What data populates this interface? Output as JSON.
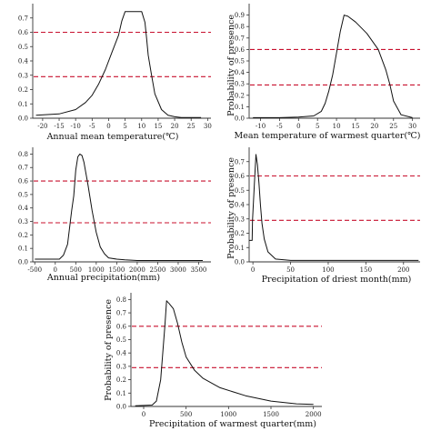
{
  "thresholds": {
    "values": [
      0.6,
      0.29
    ],
    "color": "#c8102e"
  },
  "line_color": "#111111",
  "chart_data": [
    {
      "type": "line",
      "xlabel": "Annual mean temperature(℃)",
      "ylabel": "",
      "xlim": [
        -23,
        31
      ],
      "ylim": [
        0,
        0.8
      ],
      "xticks": [
        -20,
        -15,
        -10,
        -5,
        0,
        5,
        10,
        15,
        20,
        25,
        30
      ],
      "yticks": [
        0.0,
        0.1,
        0.2,
        0.3,
        0.4,
        0.5,
        0.6,
        0.7
      ],
      "ytick_labels": [
        "0.0",
        "0.1",
        "0.2",
        "0.3",
        "0.4",
        "0.5",
        "0.6",
        "0.7"
      ],
      "x": [
        -22,
        -15,
        -10,
        -7,
        -5,
        -3,
        -1,
        1,
        3,
        4,
        5,
        7,
        9,
        10,
        11,
        11.5,
        12,
        13,
        14,
        16,
        18,
        20,
        22,
        28
      ],
      "y": [
        0.02,
        0.03,
        0.06,
        0.11,
        0.16,
        0.24,
        0.34,
        0.46,
        0.58,
        0.68,
        0.745,
        0.745,
        0.745,
        0.745,
        0.67,
        0.56,
        0.44,
        0.3,
        0.17,
        0.06,
        0.02,
        0.01,
        0.005,
        0.005
      ]
    },
    {
      "type": "line",
      "xlabel": "Mean temperature of warmest quarter(℃)",
      "ylabel": "Probability of presence",
      "xlim": [
        -13,
        32
      ],
      "ylim": [
        0,
        1.0
      ],
      "xticks": [
        -10,
        -5,
        0,
        5,
        10,
        15,
        20,
        25,
        30
      ],
      "yticks": [
        0.0,
        0.1,
        0.2,
        0.3,
        0.4,
        0.5,
        0.6,
        0.7,
        0.8,
        0.9
      ],
      "ytick_labels": [
        "0.0",
        "0.1",
        "0.2",
        "0.3",
        "0.4",
        "0.5",
        "0.6",
        "0.7",
        "0.8",
        "0.9"
      ],
      "x": [
        -12,
        -5,
        0,
        4,
        6,
        7,
        8,
        9,
        10,
        11,
        12,
        13,
        15,
        18,
        21,
        23,
        24,
        25,
        27,
        30
      ],
      "y": [
        0.005,
        0.005,
        0.01,
        0.02,
        0.06,
        0.13,
        0.24,
        0.38,
        0.57,
        0.76,
        0.9,
        0.89,
        0.84,
        0.74,
        0.6,
        0.42,
        0.3,
        0.15,
        0.03,
        0.005
      ]
    },
    {
      "type": "line",
      "xlabel": "Annual precipitation(mm)",
      "ylabel": "",
      "xlim": [
        -550,
        3800
      ],
      "ylim": [
        0,
        0.85
      ],
      "xticks": [
        -500,
        0,
        500,
        1000,
        1500,
        2000,
        2500,
        3000,
        3500
      ],
      "yticks": [
        0.0,
        0.1,
        0.2,
        0.3,
        0.4,
        0.5,
        0.6,
        0.7,
        0.8
      ],
      "ytick_labels": [
        "0.0",
        "0.1",
        "0.2",
        "0.3",
        "0.4",
        "0.5",
        "0.6",
        "0.7",
        "0.8"
      ],
      "x": [
        -500,
        100,
        200,
        300,
        400,
        450,
        500,
        550,
        600,
        650,
        700,
        800,
        900,
        1000,
        1100,
        1200,
        1300,
        1500,
        1700,
        2000,
        2500,
        3000,
        3600
      ],
      "y": [
        0.02,
        0.02,
        0.05,
        0.13,
        0.38,
        0.49,
        0.68,
        0.78,
        0.8,
        0.79,
        0.74,
        0.57,
        0.38,
        0.22,
        0.11,
        0.06,
        0.03,
        0.02,
        0.015,
        0.01,
        0.01,
        0.01,
        0.01
      ]
    },
    {
      "type": "line",
      "xlabel": "Precipitation of driest month(mm)",
      "ylabel": "Probability of presence",
      "xlim": [
        -5,
        222
      ],
      "ylim": [
        0,
        0.8
      ],
      "xticks": [
        0,
        50,
        100,
        150,
        200
      ],
      "yticks": [
        0.0,
        0.1,
        0.2,
        0.3,
        0.4,
        0.5,
        0.6,
        0.7
      ],
      "ytick_labels": [
        "0.0",
        "0.1",
        "0.2",
        "0.3",
        "0.4",
        "0.5",
        "0.6",
        "0.7"
      ],
      "x": [
        -5,
        -1,
        -0.5,
        2,
        4,
        6,
        8,
        10,
        12,
        15,
        20,
        30,
        50,
        100,
        150,
        220
      ],
      "y": [
        0.15,
        0.15,
        0.29,
        0.55,
        0.75,
        0.68,
        0.55,
        0.4,
        0.27,
        0.16,
        0.07,
        0.02,
        0.01,
        0.01,
        0.01,
        0.01
      ]
    },
    {
      "type": "line",
      "xlabel": "Precipitation of warmest quarter(mm)",
      "ylabel": "Probability of presence",
      "xlim": [
        -150,
        2100
      ],
      "ylim": [
        0,
        0.85
      ],
      "xticks": [
        0,
        500,
        1000,
        1500,
        2000
      ],
      "yticks": [
        0.0,
        0.1,
        0.2,
        0.3,
        0.4,
        0.5,
        0.6,
        0.7,
        0.8
      ],
      "ytick_labels": [
        "0.0",
        "0.1",
        "0.2",
        "0.3",
        "0.4",
        "0.5",
        "0.6",
        "0.7",
        "0.8"
      ],
      "x": [
        -100,
        100,
        150,
        200,
        250,
        270,
        300,
        350,
        400,
        450,
        500,
        600,
        700,
        900,
        1200,
        1500,
        1800,
        2000
      ],
      "y": [
        0.005,
        0.01,
        0.04,
        0.2,
        0.6,
        0.79,
        0.77,
        0.73,
        0.62,
        0.48,
        0.37,
        0.27,
        0.21,
        0.14,
        0.08,
        0.04,
        0.02,
        0.015
      ]
    }
  ]
}
